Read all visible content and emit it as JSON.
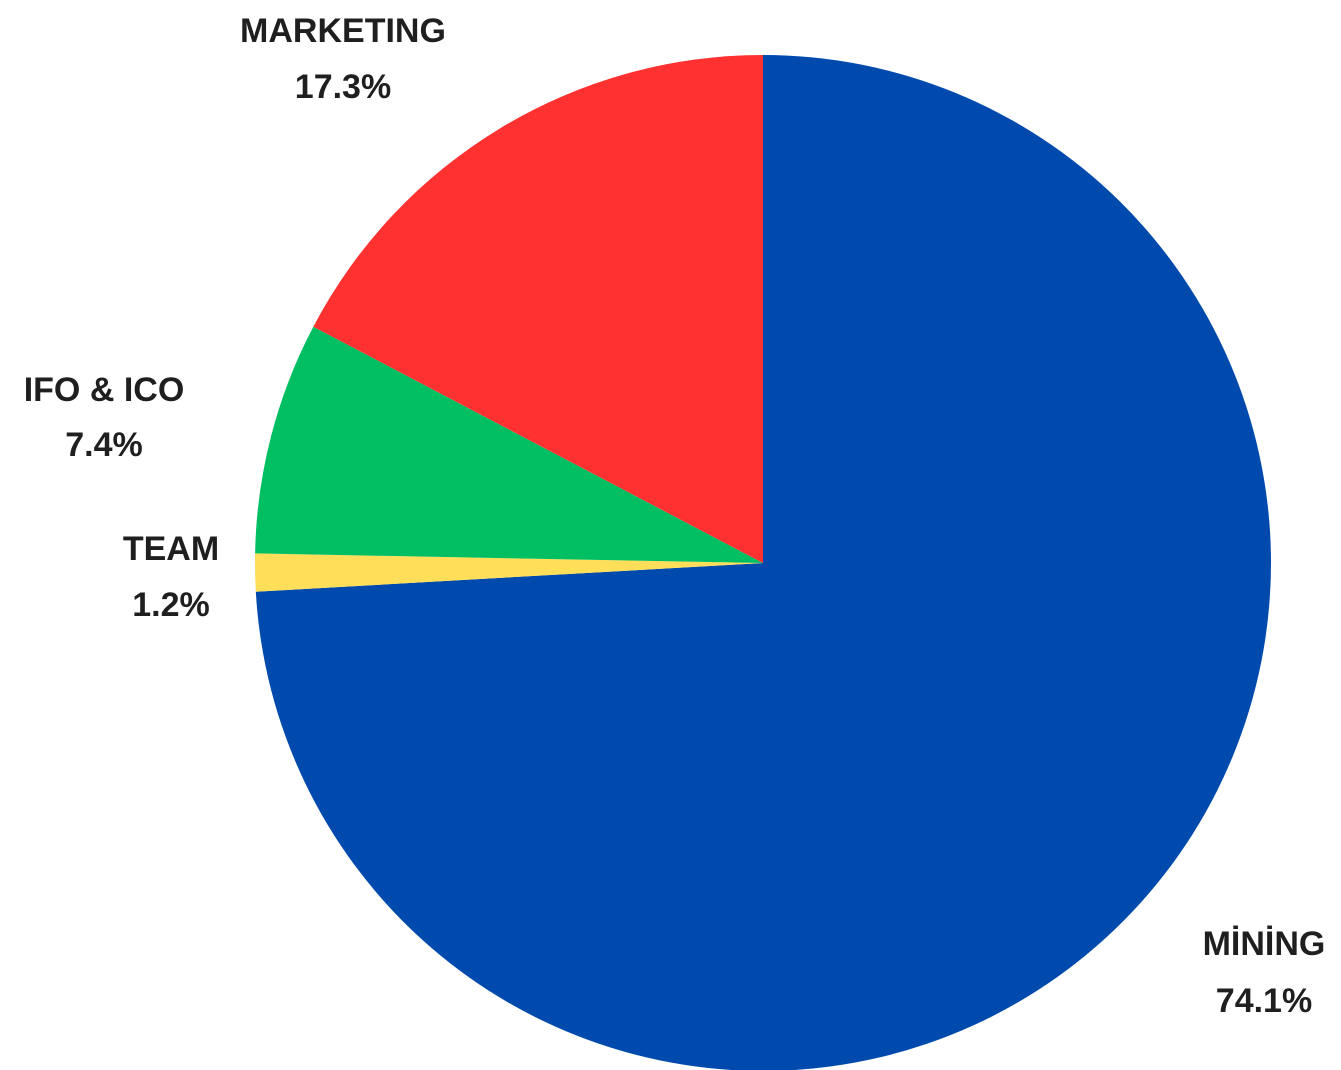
{
  "chart_data": {
    "type": "pie",
    "title": "",
    "start_angle_deg": 0,
    "direction": "clockwise",
    "slices": [
      {
        "label": "MİNİNG",
        "value": 74.1,
        "value_label": "74.1%",
        "color": "#004AAD"
      },
      {
        "label": "TEAM",
        "value": 1.2,
        "value_label": "1.2%",
        "color": "#FFDE59"
      },
      {
        "label": "IFO & ICO",
        "value": 7.4,
        "value_label": "7.4%",
        "color": "#00BF63"
      },
      {
        "label": "MARKETING",
        "value": 17.3,
        "value_label": "17.3%",
        "color": "#FF3131"
      }
    ]
  }
}
